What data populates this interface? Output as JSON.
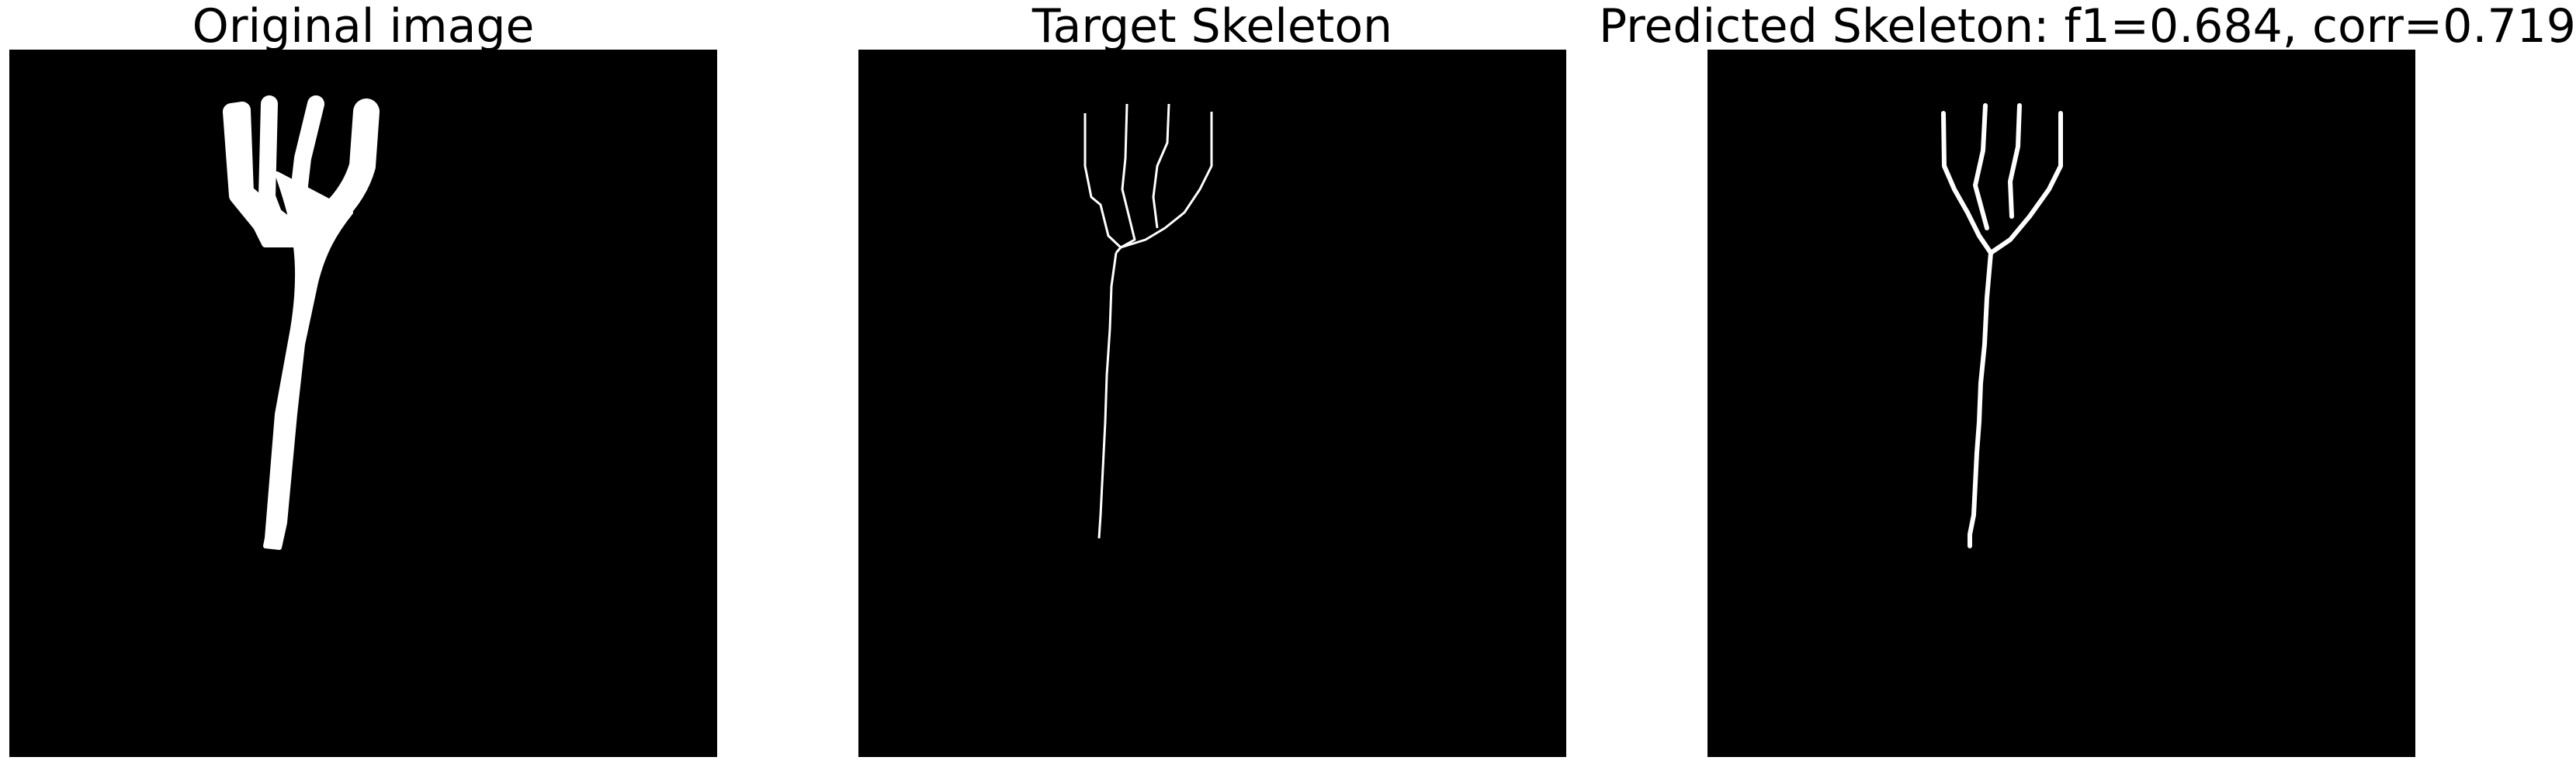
{
  "panels": [
    {
      "title": "Original image"
    },
    {
      "title": "Target Skeleton"
    },
    {
      "title": "Predicted Skeleton: f1=0.684, corr=0.719"
    }
  ],
  "colors": {
    "background": "#000000",
    "foreground": "#ffffff",
    "figure": "#ffffff"
  }
}
